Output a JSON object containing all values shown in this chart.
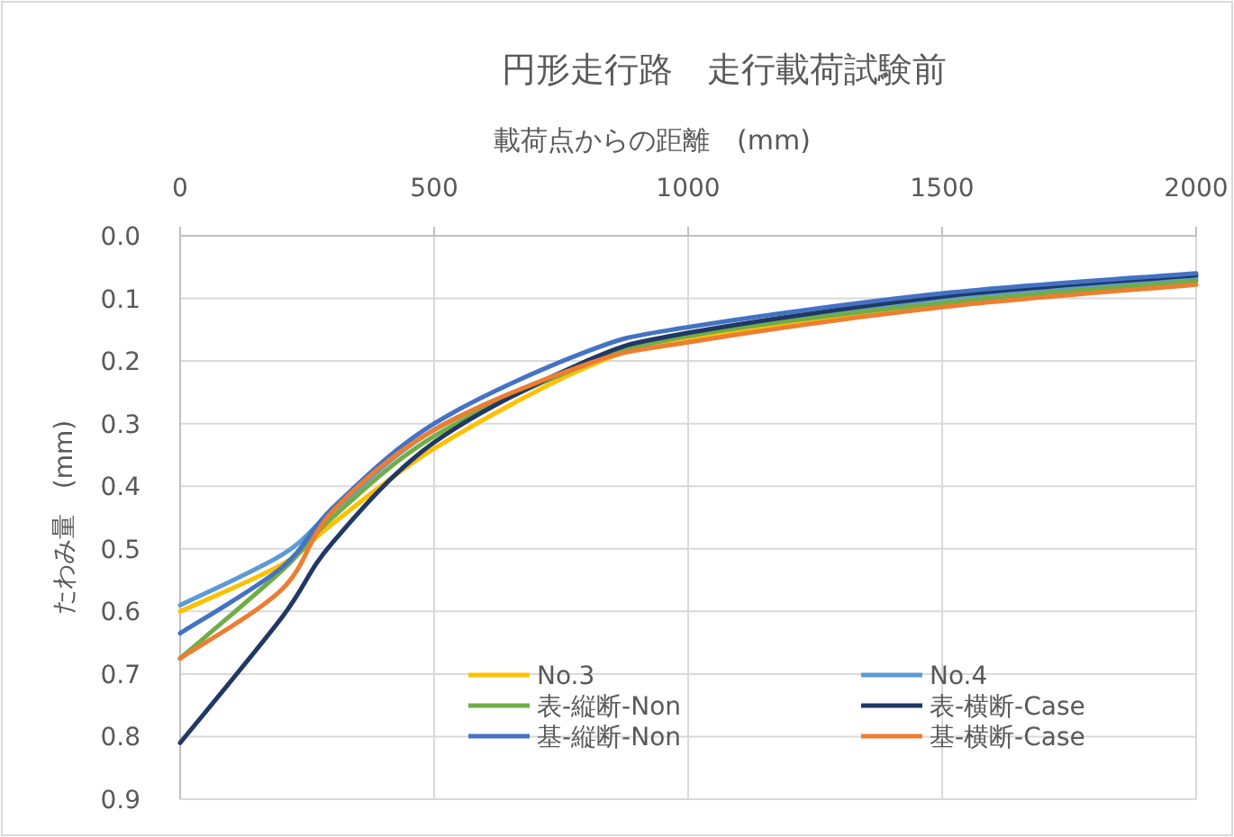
{
  "chart_data": {
    "type": "line",
    "title": "円形走行路　走行載荷試験前",
    "xlabel": "載荷点からの距離　(mm)",
    "ylabel": "たわみ量　(mm)",
    "x": [
      0,
      200,
      300,
      500,
      800,
      1000,
      1500,
      2000
    ],
    "series": [
      {
        "name": "No.3",
        "color": "#ffc000",
        "values": [
          0.6,
          0.525,
          0.46,
          0.34,
          0.21,
          0.165,
          0.11,
          0.07
        ]
      },
      {
        "name": "No.4",
        "color": "#5b9bd5",
        "values": [
          0.59,
          0.51,
          0.44,
          0.31,
          0.205,
          0.16,
          0.1,
          0.067
        ]
      },
      {
        "name": "表-縦断-Non",
        "color": "#70ad47",
        "values": [
          0.675,
          0.535,
          0.45,
          0.32,
          0.205,
          0.16,
          0.107,
          0.072
        ]
      },
      {
        "name": "表-横断-Case",
        "color": "#203864",
        "values": [
          0.81,
          0.61,
          0.49,
          0.33,
          0.2,
          0.155,
          0.097,
          0.063
        ]
      },
      {
        "name": "基-縦断-Non",
        "color": "#4472c4",
        "values": [
          0.635,
          0.53,
          0.435,
          0.3,
          0.185,
          0.146,
          0.092,
          0.06
        ]
      },
      {
        "name": "基-横断-Case",
        "color": "#ed7d31",
        "values": [
          0.675,
          0.565,
          0.44,
          0.31,
          0.205,
          0.17,
          0.114,
          0.078
        ]
      }
    ],
    "xlim": [
      0,
      2000
    ],
    "xticks": [
      0,
      500,
      1000,
      1500,
      2000
    ],
    "ylim": [
      0.9,
      0
    ],
    "yticks": [
      {
        "value": 0,
        "label": "0.0"
      },
      0.1,
      0.2,
      0.3,
      0.4,
      0.5,
      0.6,
      0.7,
      0.8,
      0.9
    ],
    "grid": true,
    "legend": "bottom",
    "marker": "none",
    "line_style": "solid"
  }
}
